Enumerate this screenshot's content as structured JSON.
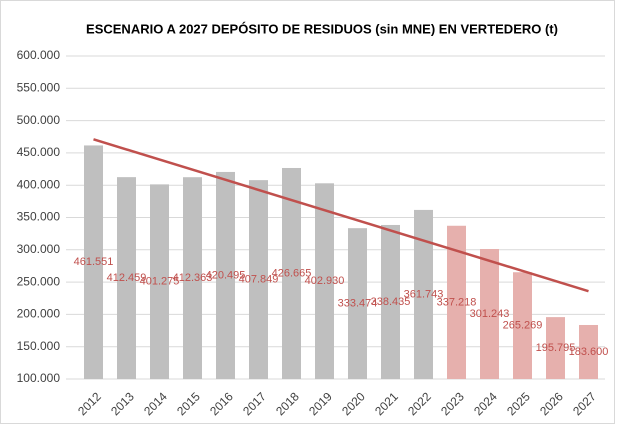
{
  "chart_data": {
    "type": "bar",
    "title": "ESCENARIO A 2027 DEPÓSITO DE RESIDUOS (sin MNE) EN VERTEDERO (t)",
    "categories": [
      "2012",
      "2013",
      "2014",
      "2015",
      "2016",
      "2017",
      "2018",
      "2019",
      "2020",
      "2021",
      "2022",
      "2023",
      "2024",
      "2025",
      "2026",
      "2027"
    ],
    "values": [
      461551,
      412459,
      401275,
      412363,
      420495,
      407849,
      426665,
      402930,
      333474,
      338435,
      361743,
      337218,
      301243,
      265269,
      195795,
      183600
    ],
    "value_labels": [
      "461.551",
      "412.459",
      "401.275",
      "412.363",
      "420.495",
      "407.849",
      "426.665",
      "402.930",
      "333.474",
      "338.435",
      "361.743",
      "337.218",
      "301.243",
      "265.269",
      "195.795",
      "183.600"
    ],
    "colors": [
      "#bfbfbf",
      "#bfbfbf",
      "#bfbfbf",
      "#bfbfbf",
      "#bfbfbf",
      "#bfbfbf",
      "#bfbfbf",
      "#bfbfbf",
      "#bfbfbf",
      "#bfbfbf",
      "#bfbfbf",
      "#e6b0ad",
      "#e6b0ad",
      "#e6b0ad",
      "#e6b0ad",
      "#e6b0ad"
    ],
    "label_color": "#c0504d",
    "trendline": {
      "color": "#c0504d",
      "values": [
        471000,
        236000
      ]
    },
    "ylim": [
      100000,
      600000
    ],
    "yticks": [
      {
        "value": 100000,
        "label": "100.000"
      },
      {
        "value": 150000,
        "label": "150.000"
      },
      {
        "value": 200000,
        "label": "200.000"
      },
      {
        "value": 250000,
        "label": "250.000"
      },
      {
        "value": 300000,
        "label": "300.000"
      },
      {
        "value": 350000,
        "label": "350.000"
      },
      {
        "value": 400000,
        "label": "400.000"
      },
      {
        "value": 450000,
        "label": "450.000"
      },
      {
        "value": 500000,
        "label": "500.000"
      },
      {
        "value": 550000,
        "label": "550.000"
      },
      {
        "value": 600000,
        "label": "600.000"
      }
    ],
    "grid": true
  }
}
